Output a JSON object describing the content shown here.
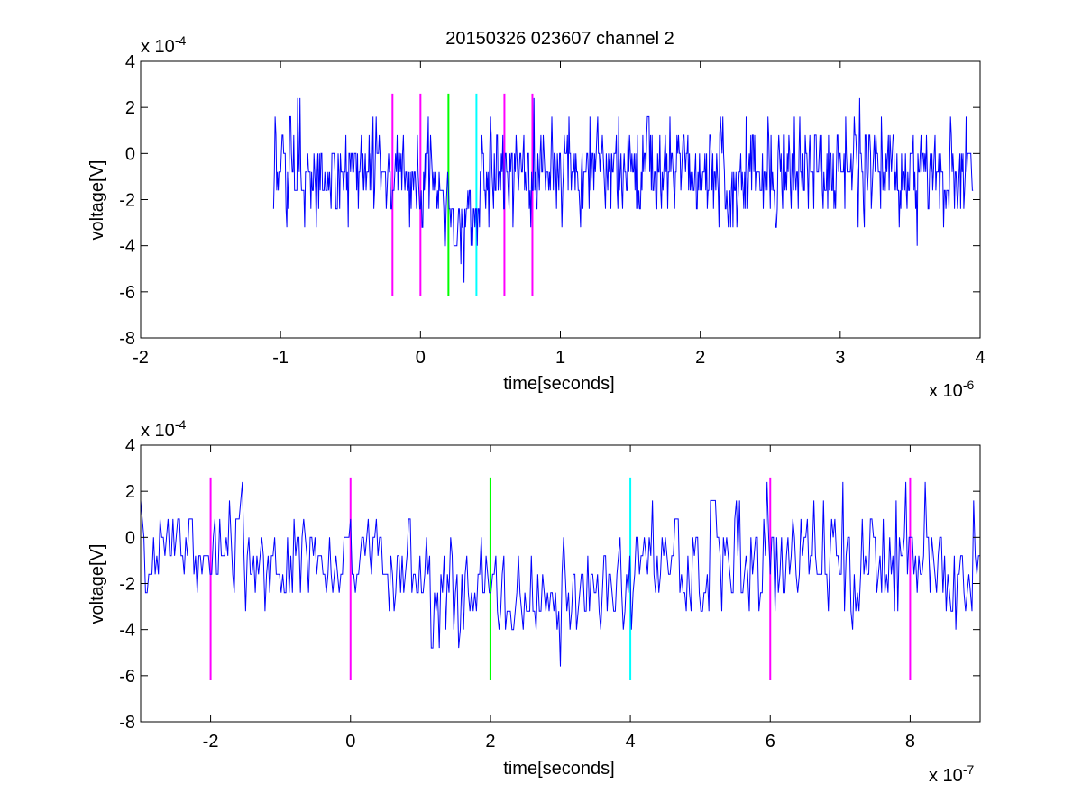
{
  "figure": {
    "title": "20150326 023607 channel 2"
  },
  "chart_data": [
    {
      "type": "line",
      "title": "20150326 023607 channel 2",
      "xlabel": "time[seconds]",
      "ylabel": "voltage[V]",
      "x_exponent_label": "x 10",
      "x_exponent": "-6",
      "y_exponent_label": "x 10",
      "y_exponent": "-4",
      "xlim": [
        -2,
        4
      ],
      "ylim": [
        -8,
        4
      ],
      "xticks": [
        "-2",
        "-1",
        "0",
        "1",
        "2",
        "3",
        "4"
      ],
      "yticks": [
        "4",
        "2",
        "0",
        "-2",
        "-4",
        "-6",
        "-8"
      ],
      "grid": false,
      "signal": {
        "color": "#0000ff",
        "x_start": -1.05,
        "x_end": 3.95,
        "level_step": 0.8,
        "segments": [
          {
            "x0": -1.05,
            "x1": -0.86,
            "mean": -0.9,
            "noise": 1.1
          },
          {
            "x0": -0.86,
            "x1": -0.1,
            "mean": -0.9,
            "noise": 0.9
          },
          {
            "x0": -0.1,
            "x1": 0.15,
            "mean": -1.4,
            "noise": 1.1
          },
          {
            "x0": 0.15,
            "x1": 0.42,
            "mean": -2.7,
            "noise": 0.9
          },
          {
            "x0": 0.42,
            "x1": 3.95,
            "mean": -0.8,
            "noise": 1.0
          }
        ],
        "spikes": [
          {
            "x": -1.04,
            "y": 1.6
          },
          {
            "x": -0.88,
            "y": 2.4
          },
          {
            "x": -0.86,
            "y": 2.4
          },
          {
            "x": 0.31,
            "y": -5.6
          },
          {
            "x": 0.29,
            "y": -4.8
          },
          {
            "x": 0.81,
            "y": 2.4
          },
          {
            "x": 3.55,
            "y": -4.0
          },
          {
            "x": 3.14,
            "y": 2.4
          },
          {
            "x": 3.04,
            "y": 1.6
          },
          {
            "x": 1.21,
            "y": 1.6
          },
          {
            "x": 2.33,
            "y": 1.6
          },
          {
            "x": 2.67,
            "y": 1.6
          }
        ]
      },
      "markers": [
        {
          "x": -0.2,
          "color": "#ff00ff",
          "ymin": -6.2,
          "ymax": 2.6
        },
        {
          "x": 0.0,
          "color": "#ff00ff",
          "ymin": -6.2,
          "ymax": 2.6
        },
        {
          "x": 0.2,
          "color": "#00ff00",
          "ymin": -6.2,
          "ymax": 2.6
        },
        {
          "x": 0.4,
          "color": "#00ffff",
          "ymin": -6.2,
          "ymax": 2.6
        },
        {
          "x": 0.6,
          "color": "#ff00ff",
          "ymin": -6.2,
          "ymax": 2.6
        },
        {
          "x": 0.8,
          "color": "#ff00ff",
          "ymin": -6.2,
          "ymax": 2.6
        }
      ]
    },
    {
      "type": "line",
      "title": "",
      "xlabel": "time[seconds]",
      "ylabel": "voltage[V]",
      "x_exponent_label": "x 10",
      "x_exponent": "-7",
      "y_exponent_label": "x 10",
      "y_exponent": "-4",
      "xlim": [
        -3,
        9
      ],
      "ylim": [
        -8,
        4
      ],
      "xticks": [
        "-2",
        "0",
        "2",
        "4",
        "6",
        "8"
      ],
      "xtick_values": [
        -2,
        0,
        2,
        4,
        6,
        8
      ],
      "yticks": [
        "4",
        "2",
        "0",
        "-2",
        "-4",
        "-6",
        "-8"
      ],
      "grid": false,
      "signal": {
        "color": "#0000ff",
        "x_start": -3,
        "x_end": 9,
        "level_step": 0.8,
        "segments": [
          {
            "x0": -3.0,
            "x1": -1.3,
            "mean": -0.4,
            "noise": 1.0
          },
          {
            "x0": -1.3,
            "x1": 1.0,
            "mean": -1.2,
            "noise": 1.0
          },
          {
            "x0": 1.0,
            "x1": 4.0,
            "mean": -2.6,
            "noise": 1.1
          },
          {
            "x0": 4.0,
            "x1": 9.0,
            "mean": -0.9,
            "noise": 1.3
          }
        ],
        "spikes": [
          {
            "x": -1.73,
            "y": 1.6
          },
          {
            "x": 2.99,
            "y": -5.6
          },
          {
            "x": 7.04,
            "y": 2.4
          },
          {
            "x": 8.22,
            "y": 2.4
          },
          {
            "x": 8.91,
            "y": 1.6
          },
          {
            "x": 4.02,
            "y": -4.0
          },
          {
            "x": 1.36,
            "y": -4.0
          },
          {
            "x": 5.22,
            "y": 1.6
          },
          {
            "x": 5.52,
            "y": 1.6
          },
          {
            "x": 7.83,
            "y": -3.2
          },
          {
            "x": 8.77,
            "y": -2.4
          },
          {
            "x": -1.5,
            "y": -3.2
          }
        ]
      },
      "markers": [
        {
          "x": -2,
          "color": "#ff00ff",
          "ymin": -6.2,
          "ymax": 2.6
        },
        {
          "x": 0,
          "color": "#ff00ff",
          "ymin": -6.2,
          "ymax": 2.6
        },
        {
          "x": 2,
          "color": "#00ff00",
          "ymin": -6.2,
          "ymax": 2.6
        },
        {
          "x": 4,
          "color": "#00ffff",
          "ymin": -6.2,
          "ymax": 2.6
        },
        {
          "x": 6,
          "color": "#ff00ff",
          "ymin": -6.2,
          "ymax": 2.6
        },
        {
          "x": 8,
          "color": "#ff00ff",
          "ymin": -6.2,
          "ymax": 2.6
        }
      ]
    }
  ]
}
